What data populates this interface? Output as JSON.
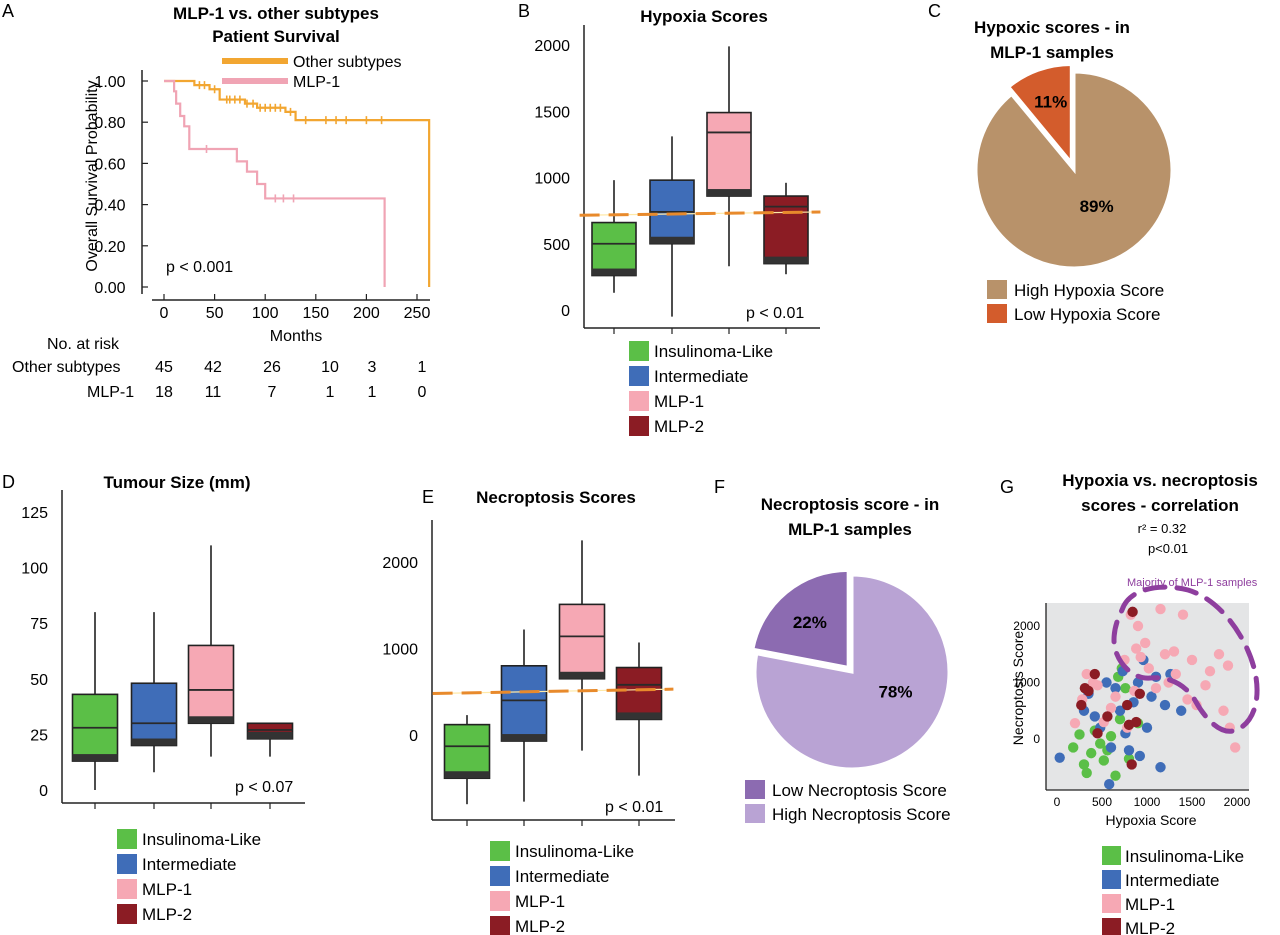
{
  "panel_labels": [
    "A",
    "B",
    "C",
    "D",
    "E",
    "F",
    "G"
  ],
  "colors": {
    "other_subtypes": "#F2A631",
    "mlp1_curve": "#F0A4B4",
    "insulinoma": "#5BBF47",
    "intermediate": "#3F6DB8",
    "mlp1": "#F6A8B4",
    "mlp2": "#8B1C24",
    "median_line": "#2a2a2a",
    "box_base": "#333333",
    "dash_line": "#E88A2C",
    "high_hypoxia": "#B8926A",
    "low_hypoxia": "#D35C2C",
    "low_necroptosis": "#8C6BB1",
    "high_necroptosis": "#B9A3D4",
    "scatter_bg": "#E4E5E6",
    "annotation_purple": "#8E3E9E"
  },
  "legend_box": {
    "entries": [
      "Insulinoma-Like",
      "Intermediate",
      "MLP-1",
      "MLP-2"
    ]
  },
  "chart_data": [
    {
      "id": "A",
      "type": "line",
      "title": "MLP-1 vs. other subtypes",
      "subtitle": "Patient Survival",
      "xlabel": "Months",
      "ylabel": "Overall Survival Probability",
      "xlim": [
        0,
        260
      ],
      "ylim": [
        0,
        1
      ],
      "xticks": [
        0,
        50,
        100,
        150,
        200,
        250
      ],
      "xtick_labels": [
        "0",
        "50",
        "100",
        "150",
        "200",
        "250"
      ],
      "yticks": [
        0,
        0.2,
        0.4,
        0.6,
        0.8,
        1.0
      ],
      "ytick_labels": [
        "0.00",
        "0.20",
        "0.40",
        "0.60",
        "0.80",
        "1.00"
      ],
      "annotation": "p < 0.001",
      "legend_position": "top-right",
      "series": [
        {
          "name": "Other subtypes",
          "color_key": "other_subtypes",
          "steps": [
            [
              0,
              1.0
            ],
            [
              30,
              0.98
            ],
            [
              45,
              0.96
            ],
            [
              55,
              0.91
            ],
            [
              80,
              0.89
            ],
            [
              92,
              0.87
            ],
            [
              120,
              0.85
            ],
            [
              130,
              0.81
            ],
            [
              262,
              0.81
            ],
            [
              262,
              0.0
            ]
          ],
          "censor_x": [
            35,
            40,
            50,
            62,
            65,
            70,
            75,
            82,
            88,
            95,
            100,
            105,
            110,
            115,
            125,
            140,
            160,
            170,
            180,
            200,
            215
          ]
        },
        {
          "name": "MLP-1",
          "color_key": "mlp1_curve",
          "steps": [
            [
              0,
              1.0
            ],
            [
              10,
              0.95
            ],
            [
              12,
              0.89
            ],
            [
              16,
              0.83
            ],
            [
              20,
              0.78
            ],
            [
              25,
              0.67
            ],
            [
              72,
              0.61
            ],
            [
              82,
              0.56
            ],
            [
              92,
              0.5
            ],
            [
              100,
              0.43
            ],
            [
              218,
              0.43
            ],
            [
              218,
              0.0
            ]
          ],
          "censor_x": [
            42,
            110,
            118,
            128
          ]
        }
      ],
      "risk_table": {
        "header": "No. at risk",
        "rows": [
          {
            "label": "Other subtypes",
            "values": [
              "45",
              "42",
              "26",
              "10",
              "3",
              "1"
            ]
          },
          {
            "label": "MLP-1",
            "values": [
              "18",
              "11",
              "7",
              "1",
              "1",
              "0"
            ]
          }
        ]
      }
    },
    {
      "id": "B",
      "type": "bar",
      "subtype": "box",
      "title": "Hypoxia Scores",
      "xlabel": "",
      "ylabel": "",
      "ylim": [
        -130,
        2100
      ],
      "yticks": [
        0,
        500,
        1000,
        1500,
        2000
      ],
      "ytick_labels": [
        "0",
        "500",
        "1000",
        "1500",
        "2000"
      ],
      "annotation": "p < 0.01",
      "categories": [
        "Insulinoma-Like",
        "Intermediate",
        "MLP-1",
        "MLP-2"
      ],
      "boxes": [
        {
          "min": 130,
          "q1": 260,
          "median": 500,
          "q3": 660,
          "max": 980
        },
        {
          "min": -50,
          "q1": 500,
          "median": 740,
          "q3": 980,
          "max": 1310
        },
        {
          "min": 330,
          "q1": 860,
          "median": 1340,
          "q3": 1490,
          "max": 1990
        },
        {
          "min": 270,
          "q1": 350,
          "median": 780,
          "q3": 860,
          "max": 960
        }
      ],
      "dash_line": [
        [
          -0.6,
          715
        ],
        [
          3.6,
          740
        ]
      ]
    },
    {
      "id": "C",
      "type": "pie",
      "title": "Hypoxic scores - in MLP-1 samples",
      "title_lines": [
        "Hypoxic scores - in",
        "MLP-1 samples"
      ],
      "slices": [
        {
          "label": "High Hypoxia Score",
          "value": 89,
          "text": "89%",
          "color_key": "high_hypoxia"
        },
        {
          "label": "Low Hypoxia Score",
          "value": 11,
          "text": "11%",
          "color_key": "low_hypoxia",
          "exploded": true
        }
      ],
      "legend_position": "bottom"
    },
    {
      "id": "D",
      "type": "bar",
      "subtype": "box",
      "title": "Tumour Size (mm)",
      "xlabel": "",
      "ylabel": "",
      "ylim": [
        -5,
        130
      ],
      "yticks": [
        0,
        25,
        50,
        75,
        100,
        125
      ],
      "ytick_labels": [
        "0",
        "25",
        "50",
        "75",
        "100",
        "125"
      ],
      "annotation": "p < 0.07",
      "categories": [
        "Insulinoma-Like",
        "Intermediate",
        "MLP-1",
        "MLP-2"
      ],
      "boxes": [
        {
          "min": 0,
          "q1": 13,
          "median": 28,
          "q3": 43,
          "max": 80
        },
        {
          "min": 8,
          "q1": 20,
          "median": 30,
          "q3": 48,
          "max": 80
        },
        {
          "min": 15,
          "q1": 30,
          "median": 45,
          "q3": 65,
          "max": 110
        },
        {
          "min": 15,
          "q1": 23,
          "median": 27,
          "q3": 30,
          "max": 30
        }
      ]
    },
    {
      "id": "E",
      "type": "bar",
      "subtype": "box",
      "title": "Necroptosis Scores",
      "xlabel": "",
      "ylabel": "",
      "ylim": [
        -950,
        2500
      ],
      "yticks": [
        0,
        1000,
        2000
      ],
      "ytick_labels": [
        "0",
        "1000",
        "2000"
      ],
      "annotation": "p < 0.01",
      "categories": [
        "Insulinoma-Like",
        "Intermediate",
        "MLP-1",
        "MLP-2"
      ],
      "boxes": [
        {
          "min": -800,
          "q1": -500,
          "median": -130,
          "q3": 120,
          "max": 230
        },
        {
          "min": -770,
          "q1": -70,
          "median": 400,
          "q3": 800,
          "max": 1220
        },
        {
          "min": -180,
          "q1": 650,
          "median": 1140,
          "q3": 1510,
          "max": 2250
        },
        {
          "min": -470,
          "q1": 180,
          "median": 580,
          "q3": 780,
          "max": 1070
        }
      ],
      "dash_line": [
        [
          -0.6,
          480
        ],
        [
          3.6,
          530
        ]
      ]
    },
    {
      "id": "F",
      "type": "pie",
      "title": "Necroptosis score - in MLP-1 samples",
      "title_lines": [
        "Necroptosis score -  in",
        "MLP-1 samples"
      ],
      "slices": [
        {
          "label": "High Necroptosis Score",
          "value": 78,
          "text": "78%",
          "color_key": "high_necroptosis"
        },
        {
          "label": "Low Necroptosis Score",
          "value": 22,
          "text": "22%",
          "color_key": "low_necroptosis",
          "exploded": true
        }
      ],
      "legend_order": [
        "Low Necroptosis Score",
        "High Necroptosis Score"
      ],
      "legend_position": "bottom"
    },
    {
      "id": "G",
      "type": "scatter",
      "title": "Hypoxia vs. necroptosis scores - correlation",
      "title_lines": [
        "Hypoxia vs. necroptosis",
        "scores -  correlation"
      ],
      "stat_lines": [
        "r² = 0.32",
        "p<0.01"
      ],
      "annotation": "Majority of MLP-1 samples",
      "xlabel": "Hypoxia Score",
      "ylabel": "Necroptosis Score",
      "xlim": [
        -60,
        2100
      ],
      "ylim": [
        -950,
        2600
      ],
      "xticks": [
        0,
        500,
        1000,
        1500,
        2000
      ],
      "xtick_labels": [
        "0",
        "500",
        "1000",
        "1500",
        "2000"
      ],
      "yticks": [
        0,
        1000,
        2000
      ],
      "ytick_labels": [
        "0",
        "1000",
        "2000"
      ],
      "series": [
        {
          "name": "Insulinoma-Like",
          "color_key": "insulinoma",
          "points": [
            [
              180,
              -150
            ],
            [
              250,
              80
            ],
            [
              300,
              -450
            ],
            [
              330,
              -600
            ],
            [
              380,
              -250
            ],
            [
              420,
              150
            ],
            [
              480,
              -80
            ],
            [
              520,
              -380
            ],
            [
              560,
              -200
            ],
            [
              600,
              50
            ],
            [
              650,
              -650
            ],
            [
              700,
              350
            ],
            [
              720,
              1250
            ],
            [
              680,
              1100
            ],
            [
              760,
              900
            ],
            [
              800,
              -350
            ],
            [
              900,
              280
            ]
          ]
        },
        {
          "name": "Intermediate",
          "color_key": "intermediate",
          "points": [
            [
              30,
              -330
            ],
            [
              300,
              500
            ],
            [
              350,
              800
            ],
            [
              420,
              400
            ],
            [
              480,
              200
            ],
            [
              550,
              1000
            ],
            [
              580,
              -800
            ],
            [
              600,
              -150
            ],
            [
              650,
              900
            ],
            [
              700,
              500
            ],
            [
              730,
              1200
            ],
            [
              760,
              100
            ],
            [
              800,
              -200
            ],
            [
              850,
              650
            ],
            [
              900,
              1000
            ],
            [
              920,
              -300
            ],
            [
              960,
              1400
            ],
            [
              1000,
              200
            ],
            [
              1050,
              750
            ],
            [
              1100,
              1100
            ],
            [
              1150,
              -500
            ],
            [
              1200,
              600
            ],
            [
              1260,
              1150
            ],
            [
              1380,
              500
            ]
          ]
        },
        {
          "name": "MLP-1",
          "color_key": "mlp1",
          "points": [
            [
              200,
              280
            ],
            [
              280,
              700
            ],
            [
              330,
              1150
            ],
            [
              400,
              1000
            ],
            [
              450,
              950
            ],
            [
              520,
              300
            ],
            [
              600,
              550
            ],
            [
              650,
              750
            ],
            [
              750,
              1400
            ],
            [
              780,
              200
            ],
            [
              820,
              2200
            ],
            [
              860,
              850
            ],
            [
              880,
              1600
            ],
            [
              900,
              2000
            ],
            [
              930,
              1450
            ],
            [
              980,
              1700
            ],
            [
              1020,
              1250
            ],
            [
              1100,
              900
            ],
            [
              1150,
              2300
            ],
            [
              1200,
              1500
            ],
            [
              1240,
              1000
            ],
            [
              1300,
              1550
            ],
            [
              1320,
              1150
            ],
            [
              1400,
              2200
            ],
            [
              1450,
              700
            ],
            [
              1500,
              1400
            ],
            [
              1550,
              600
            ],
            [
              1650,
              950
            ],
            [
              1700,
              1200
            ],
            [
              1800,
              1500
            ],
            [
              1850,
              500
            ],
            [
              1900,
              1300
            ],
            [
              1920,
              200
            ],
            [
              1980,
              -150
            ]
          ]
        },
        {
          "name": "MLP-2",
          "color_key": "mlp2",
          "points": [
            [
              270,
              600
            ],
            [
              310,
              900
            ],
            [
              350,
              850
            ],
            [
              420,
              1150
            ],
            [
              450,
              100
            ],
            [
              560,
              400
            ],
            [
              780,
              600
            ],
            [
              800,
              250
            ],
            [
              830,
              -450
            ],
            [
              840,
              2250
            ],
            [
              880,
              300
            ],
            [
              920,
              800
            ]
          ]
        }
      ]
    }
  ]
}
